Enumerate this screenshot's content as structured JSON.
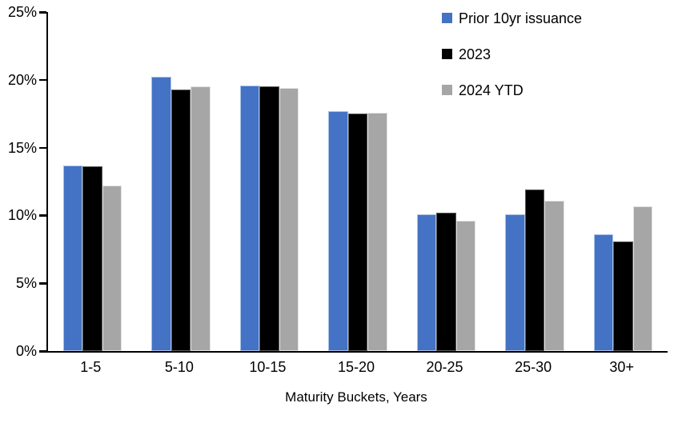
{
  "chart_data": {
    "type": "bar",
    "title": "",
    "xlabel": "Maturity Buckets, Years",
    "ylabel": "",
    "ylim": [
      0,
      25
    ],
    "grid": false,
    "legend_position": "top-right",
    "categories": [
      "1-5",
      "5-10",
      "10-15",
      "15-20",
      "20-25",
      "25-30",
      "30+"
    ],
    "y_ticks": [
      "0%",
      "5%",
      "10%",
      "15%",
      "20%",
      "25%"
    ],
    "y_tick_values": [
      0,
      5,
      10,
      15,
      20,
      25
    ],
    "series": [
      {
        "name": "Prior 10yr issuance",
        "color": "#4472C4",
        "border_color": "#A9C2E8",
        "values": [
          13.7,
          20.2,
          19.6,
          17.7,
          10.1,
          10.1,
          8.6
        ]
      },
      {
        "name": "2023",
        "color": "#000000",
        "border_color": "#595959",
        "values": [
          13.6,
          19.3,
          19.5,
          17.5,
          10.2,
          11.9,
          8.1
        ]
      },
      {
        "name": "2024 YTD",
        "color": "#A6A6A6",
        "border_color": "#E3E3E3",
        "values": [
          12.2,
          19.5,
          19.4,
          17.6,
          9.6,
          11.1,
          10.7
        ]
      }
    ],
    "axis_color": "#000000",
    "background_color": "#FFFFFF"
  }
}
